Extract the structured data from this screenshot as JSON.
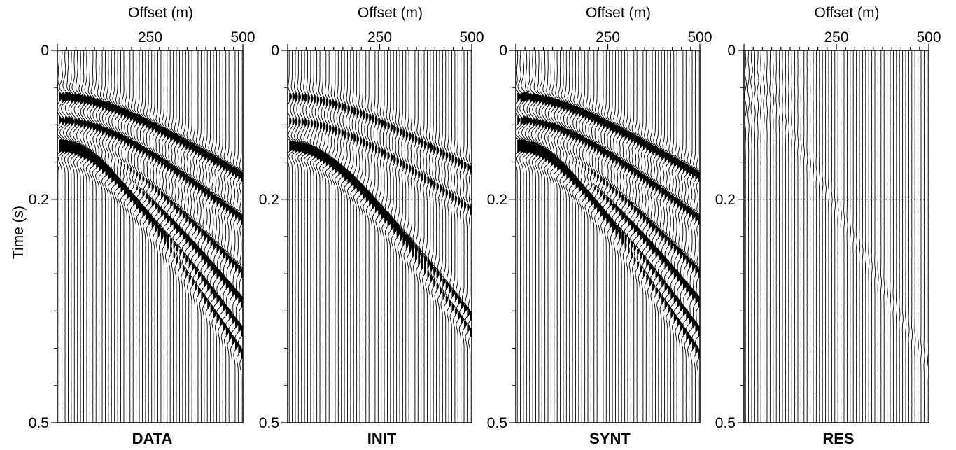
{
  "figure": {
    "y_axis_title": "Time (s)"
  },
  "chart_data": [
    {
      "type": "seismic-wiggle",
      "title": "DATA",
      "xlabel": "Offset (m)",
      "ylabel": "Time (s)",
      "xlim": [
        0,
        500
      ],
      "ylim": [
        0,
        0.5
      ],
      "x_ticks": [
        250,
        500
      ],
      "y_ticks": [
        0,
        0.2,
        0.5
      ],
      "y_tick_labels": [
        "0",
        "0.2",
        "0.5"
      ],
      "gridlines_y": [
        0.2,
        0.5
      ],
      "trace_count": 60,
      "events": [
        {
          "t0": 0.062,
          "t_end": 0.17,
          "amplitude": 1.0
        },
        {
          "t0": 0.094,
          "t_end": 0.228,
          "amplitude": 0.8
        },
        {
          "t0": 0.12,
          "t_end": 0.3,
          "amplitude": 0.7
        },
        {
          "t0": 0.128,
          "t_end": 0.34,
          "amplitude": 1.0
        },
        {
          "t0": 0.135,
          "t_end": 0.38,
          "amplitude": 0.9
        },
        {
          "t0": 0.126,
          "t_end": 0.41,
          "amplitude": 0.8
        }
      ]
    },
    {
      "type": "seismic-wiggle",
      "title": "INIT",
      "xlabel": "Offset (m)",
      "ylabel": "Time (s)",
      "xlim": [
        0,
        500
      ],
      "ylim": [
        0,
        0.5
      ],
      "x_ticks": [
        250,
        500
      ],
      "y_ticks": [
        0,
        0.2,
        0.5
      ],
      "y_tick_labels": [
        "0",
        "0.2",
        "0.5"
      ],
      "gridlines_y": [
        0.2,
        0.5
      ],
      "trace_count": 60,
      "events": [
        {
          "t0": 0.062,
          "t_end": 0.16,
          "amplitude": 0.55
        },
        {
          "t0": 0.095,
          "t_end": 0.215,
          "amplitude": 0.5
        },
        {
          "t0": 0.128,
          "t_end": 0.36,
          "amplitude": 1.0
        },
        {
          "t0": 0.128,
          "t_end": 0.38,
          "amplitude": 0.9
        }
      ]
    },
    {
      "type": "seismic-wiggle",
      "title": "SYNT",
      "xlabel": "Offset (m)",
      "ylabel": "Time (s)",
      "xlim": [
        0,
        500
      ],
      "ylim": [
        0,
        0.5
      ],
      "x_ticks": [
        250,
        500
      ],
      "y_ticks": [
        0,
        0.2,
        0.5
      ],
      "y_tick_labels": [
        "0",
        "0.2",
        "0.5"
      ],
      "gridlines_y": [
        0.2,
        0.5
      ],
      "trace_count": 60,
      "events": [
        {
          "t0": 0.062,
          "t_end": 0.17,
          "amplitude": 1.0
        },
        {
          "t0": 0.094,
          "t_end": 0.228,
          "amplitude": 0.8
        },
        {
          "t0": 0.12,
          "t_end": 0.3,
          "amplitude": 0.7
        },
        {
          "t0": 0.128,
          "t_end": 0.34,
          "amplitude": 1.0
        },
        {
          "t0": 0.135,
          "t_end": 0.38,
          "amplitude": 0.9
        },
        {
          "t0": 0.126,
          "t_end": 0.41,
          "amplitude": 0.8
        }
      ]
    },
    {
      "type": "seismic-wiggle",
      "title": "RES",
      "xlabel": "Offset (m)",
      "ylabel": "Time (s)",
      "xlim": [
        0,
        500
      ],
      "ylim": [
        0,
        0.5
      ],
      "x_ticks": [
        250,
        500
      ],
      "y_ticks": [
        0,
        0.2,
        0.5
      ],
      "y_tick_labels": [
        "0",
        "0.2",
        "0.5"
      ],
      "gridlines_y": [
        0.2,
        0.5
      ],
      "trace_count": 60,
      "events": [
        {
          "t0": 0.02,
          "t_end": 0.42,
          "amplitude": 0.12
        }
      ]
    }
  ]
}
